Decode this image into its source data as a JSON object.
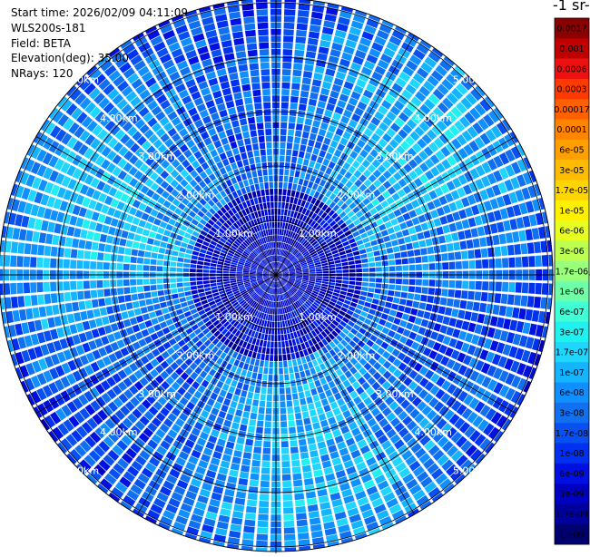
{
  "header": {
    "start_time": "Start time: 2026/02/09 04:11:09",
    "instrument": "WLS200s-181",
    "field": "Field: BETA",
    "elevation": "Elevation(deg): 35.00",
    "nrays": "NRays: 120"
  },
  "colorbar": {
    "title": "-1 sr-",
    "labels": [
      "0.0017",
      "0.001",
      "0.0006",
      "0.0003",
      "0.00017",
      "0.0001",
      "6e-05",
      "3e-05",
      "1.7e-05",
      "1e-05",
      "6e-06",
      "3e-06",
      "1.7e-06",
      "1e-06",
      "6e-07",
      "3e-07",
      "1.7e-07",
      "1e-07",
      "6e-08",
      "3e-08",
      "1.7e-08",
      "1e-08",
      "6e-09",
      "3e-09",
      "1.7e-09",
      "1e-09"
    ],
    "colors": [
      "#8b0000",
      "#c00000",
      "#ee1010",
      "#ff3a00",
      "#ff6000",
      "#ff8400",
      "#ff9f00",
      "#ffbb00",
      "#ffd500",
      "#fff000",
      "#e6ff20",
      "#bdff50",
      "#9aff7a",
      "#70ffa6",
      "#40ffd6",
      "#20f0f0",
      "#20d6ff",
      "#14b4ff",
      "#1090ff",
      "#1070f0",
      "#0850f0",
      "#0030f0",
      "#0010e0",
      "#0000c0",
      "#00009a",
      "#000070"
    ]
  },
  "chart_data": {
    "type": "heatmap",
    "projection": "polar-ppi",
    "title": "",
    "elevation_deg": 35.0,
    "nrays": 120,
    "field": "BETA",
    "range_max_km": 5.5,
    "range_gates": 45,
    "range_ring_labels": [
      "1.00km",
      "2.00km",
      "3.00km",
      "4.00km",
      "5.00km"
    ],
    "range_rings_km": [
      1,
      2,
      3,
      4,
      5
    ],
    "log10_min": -9,
    "log10_max": -2.77,
    "background_log10_typical": -7.3,
    "grid": true
  }
}
